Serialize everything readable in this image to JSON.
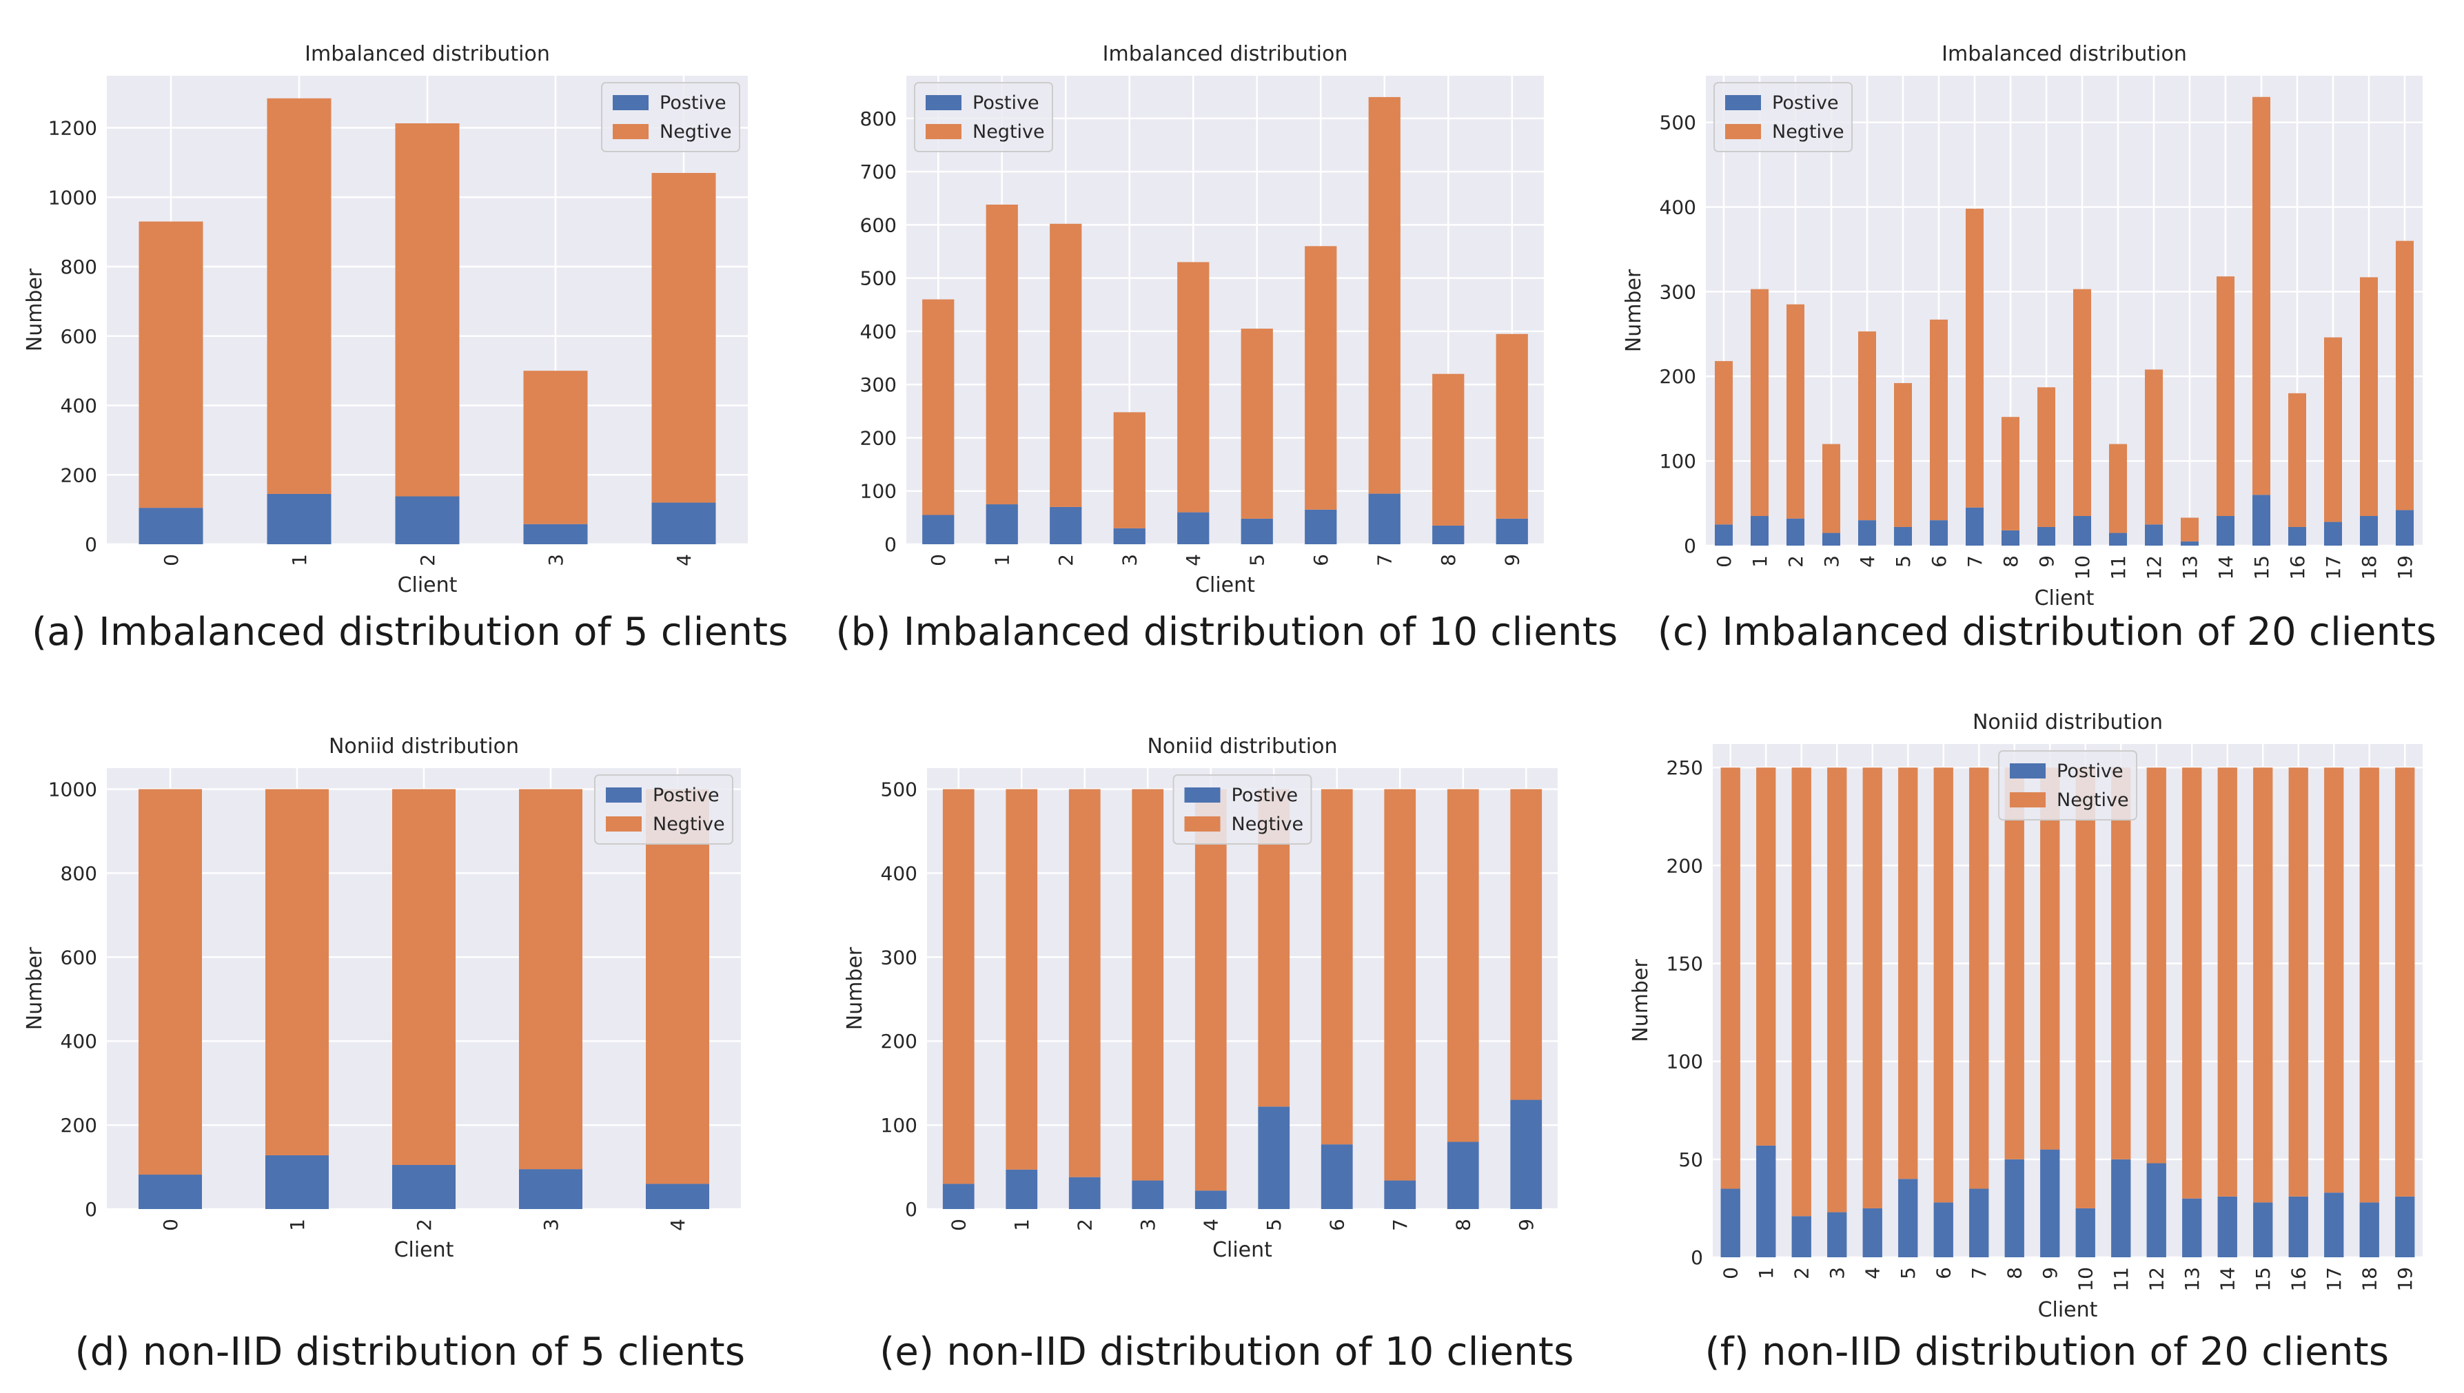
{
  "colors": {
    "positive": "#4c72b0",
    "negative": "#dd8452",
    "axes_bg": "#eaeaf2",
    "grid": "#ffffff"
  },
  "chart_data": [
    {
      "type": "bar",
      "stacked": true,
      "title": "Imbalanced distribution",
      "caption": "(a) Imbalanced distribution of 5 clients",
      "xlabel": "Client",
      "ylabel": "Number",
      "categories": [
        "0",
        "1",
        "2",
        "3",
        "4"
      ],
      "ylim": [
        0,
        1350
      ],
      "yticks": [
        0,
        200,
        400,
        600,
        800,
        1000,
        1200
      ],
      "legend_position": "top-right",
      "series": [
        {
          "name": "Postive",
          "values": [
            105,
            145,
            138,
            58,
            120
          ]
        },
        {
          "name": "Negtive",
          "values": [
            825,
            1140,
            1075,
            442,
            950
          ]
        }
      ]
    },
    {
      "type": "bar",
      "stacked": true,
      "title": "Imbalanced distribution",
      "caption": "(b) Imbalanced distribution of 10 clients",
      "xlabel": "Client",
      "ylabel": "",
      "categories": [
        "0",
        "1",
        "2",
        "3",
        "4",
        "5",
        "6",
        "7",
        "8",
        "9"
      ],
      "ylim": [
        0,
        880
      ],
      "yticks": [
        0,
        100,
        200,
        300,
        400,
        500,
        600,
        700,
        800
      ],
      "legend_position": "top-left",
      "series": [
        {
          "name": "Postive",
          "values": [
            55,
            75,
            70,
            30,
            60,
            48,
            65,
            95,
            35,
            48
          ]
        },
        {
          "name": "Negtive",
          "values": [
            405,
            563,
            532,
            218,
            470,
            357,
            495,
            745,
            285,
            347
          ]
        }
      ]
    },
    {
      "type": "bar",
      "stacked": true,
      "title": "Imbalanced distribution",
      "caption": "(c) Imbalanced distribution of 20 clients",
      "xlabel": "Client",
      "ylabel": "Number",
      "categories": [
        "0",
        "1",
        "2",
        "3",
        "4",
        "5",
        "6",
        "7",
        "8",
        "9",
        "10",
        "11",
        "12",
        "13",
        "14",
        "15",
        "16",
        "17",
        "18",
        "19"
      ],
      "ylim": [
        0,
        555
      ],
      "yticks": [
        0,
        100,
        200,
        300,
        400,
        500
      ],
      "legend_position": "top-left",
      "series": [
        {
          "name": "Postive",
          "values": [
            25,
            35,
            32,
            15,
            30,
            22,
            30,
            45,
            18,
            22,
            35,
            15,
            25,
            5,
            35,
            60,
            22,
            28,
            35,
            42
          ]
        },
        {
          "name": "Negtive",
          "values": [
            193,
            268,
            253,
            105,
            223,
            170,
            237,
            353,
            134,
            165,
            268,
            105,
            183,
            28,
            283,
            470,
            158,
            218,
            282,
            318
          ]
        }
      ]
    },
    {
      "type": "bar",
      "stacked": true,
      "title": "Noniid distribution",
      "caption": "(d) non-IID distribution of 5 clients",
      "xlabel": "Client",
      "ylabel": "Number",
      "categories": [
        "0",
        "1",
        "2",
        "3",
        "4"
      ],
      "ylim": [
        0,
        1050
      ],
      "yticks": [
        0,
        200,
        400,
        600,
        800,
        1000
      ],
      "legend_position": "top-right",
      "series": [
        {
          "name": "Postive",
          "values": [
            82,
            128,
            105,
            95,
            60
          ]
        },
        {
          "name": "Negtive",
          "values": [
            918,
            872,
            895,
            905,
            940
          ]
        }
      ]
    },
    {
      "type": "bar",
      "stacked": true,
      "title": "Noniid distribution",
      "caption": "(e) non-IID distribution of 10 clients",
      "xlabel": "Client",
      "ylabel": "Number",
      "categories": [
        "0",
        "1",
        "2",
        "3",
        "4",
        "5",
        "6",
        "7",
        "8",
        "9"
      ],
      "ylim": [
        0,
        525
      ],
      "yticks": [
        0,
        100,
        200,
        300,
        400,
        500
      ],
      "legend_position": "top-center",
      "series": [
        {
          "name": "Postive",
          "values": [
            30,
            47,
            38,
            34,
            22,
            122,
            77,
            34,
            80,
            130
          ]
        },
        {
          "name": "Negtive",
          "values": [
            470,
            453,
            462,
            466,
            478,
            378,
            423,
            466,
            420,
            370
          ]
        }
      ]
    },
    {
      "type": "bar",
      "stacked": true,
      "title": "Noniid distribution",
      "caption": "(f) non-IID distribution of 20 clients",
      "xlabel": "Client",
      "ylabel": "Number",
      "categories": [
        "0",
        "1",
        "2",
        "3",
        "4",
        "5",
        "6",
        "7",
        "8",
        "9",
        "10",
        "11",
        "12",
        "13",
        "14",
        "15",
        "16",
        "17",
        "18",
        "19"
      ],
      "ylim": [
        0,
        262
      ],
      "yticks": [
        0,
        50,
        100,
        150,
        200,
        250
      ],
      "legend_position": "top-center",
      "series": [
        {
          "name": "Postive",
          "values": [
            35,
            57,
            21,
            23,
            25,
            40,
            28,
            35,
            50,
            55,
            25,
            50,
            48,
            30,
            31,
            28,
            31,
            33,
            28,
            31
          ]
        },
        {
          "name": "Negtive",
          "values": [
            215,
            193,
            229,
            227,
            225,
            210,
            222,
            215,
            200,
            195,
            225,
            200,
            202,
            220,
            219,
            222,
            219,
            217,
            222,
            219
          ]
        }
      ]
    }
  ]
}
